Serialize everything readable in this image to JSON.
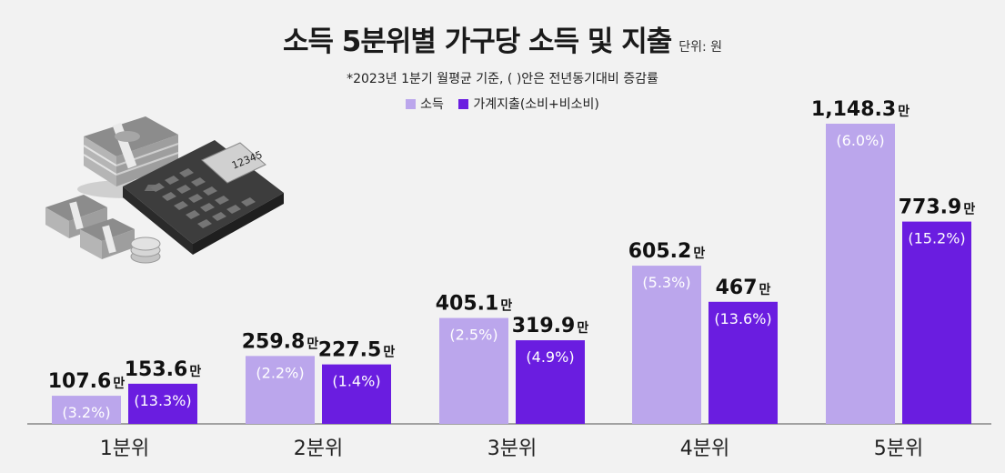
{
  "header": {
    "title": "소득 5분위별 가구당 소득 및 지출",
    "unit": "단위: 원",
    "subtitle": "*2023년 1분기 월평균 기준, (   )안은 전년동기대비 증감률"
  },
  "colors": {
    "income": "#bba6ec",
    "spending": "#6a1de0",
    "baseline": "#888888"
  },
  "icons": [
    "cash-stack-icon",
    "calculator-icon",
    "coin-icon"
  ],
  "calculator_display": "12345",
  "chart_data": {
    "type": "bar",
    "title": "소득 5분위별 가구당 소득 및 지출",
    "unit_suffix": "만",
    "categories": [
      "1분위",
      "2분위",
      "3분위",
      "4분위",
      "5분위"
    ],
    "series": [
      {
        "name": "소득",
        "values": [
          107.6,
          259.8,
          405.1,
          605.2,
          1148.3
        ],
        "labels": [
          "107.6",
          "259.8",
          "405.1",
          "605.2",
          "1,148.3"
        ],
        "changes": [
          "(3.2%)",
          "(2.2%)",
          "(2.5%)",
          "(5.3%)",
          "(6.0%)"
        ]
      },
      {
        "name": "가계지출(소비+비소비)",
        "values": [
          153.6,
          227.5,
          319.9,
          467,
          773.9
        ],
        "labels": [
          "153.6",
          "227.5",
          "319.9",
          "467",
          "773.9"
        ],
        "changes": [
          "(13.3%)",
          "(1.4%)",
          "(4.9%)",
          "(13.6%)",
          "(15.2%)"
        ]
      }
    ],
    "ylim": [
      0,
      1148.3
    ]
  }
}
